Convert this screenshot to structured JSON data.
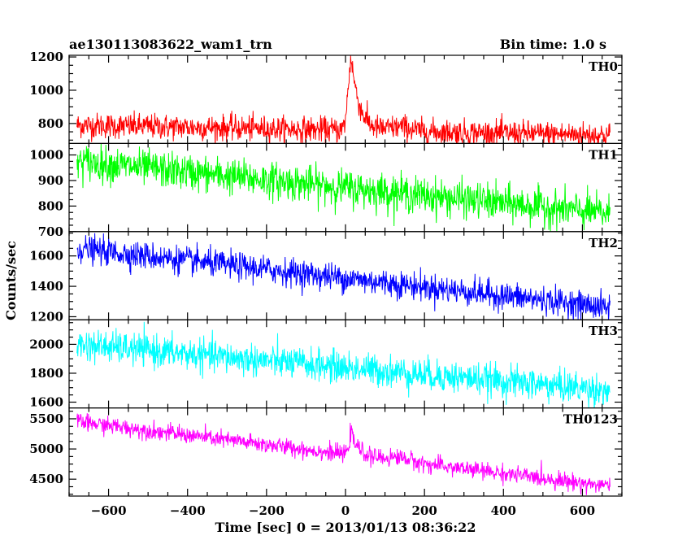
{
  "chart_data": {
    "type": "line",
    "title": "ae130113083622_wam1_trn",
    "bin_time_label": "Bin time: 1.0 s",
    "xlabel": "Time [sec] 0 = 2013/01/13 08:36:22",
    "ylabel": "Counts/sec",
    "xlim": [
      -700,
      700
    ],
    "x_ticks": [
      -600,
      -400,
      -200,
      0,
      200,
      400,
      600
    ],
    "x_tick_labels": [
      "−600",
      "−400",
      "−200",
      "0",
      "200",
      "400",
      "600"
    ],
    "x_range": [
      -680,
      670
    ],
    "series": [
      {
        "name": "TH0",
        "color": "#ff0000",
        "ylim": [
          680,
          1210
        ],
        "y_ticks": [
          800,
          1000,
          1200
        ],
        "y_tick_labels": [
          "800",
          "1000",
          "1200"
        ],
        "baseline_start": 790,
        "baseline_end": 730,
        "noise": 38,
        "peak": {
          "x": 15,
          "height": 430,
          "width": 8,
          "decay": 20
        },
        "bump": {
          "x": 140,
          "height": 25,
          "width": 25
        }
      },
      {
        "name": "TH1",
        "color": "#00ff00",
        "ylim": [
          700,
          1045
        ],
        "y_ticks": [
          700,
          800,
          900,
          1000
        ],
        "y_tick_labels": [
          "700",
          "800",
          "900",
          "1000"
        ],
        "baseline_start": 975,
        "baseline_end": 770,
        "noise": 35
      },
      {
        "name": "TH2",
        "color": "#0000ff",
        "ylim": [
          1180,
          1760
        ],
        "y_ticks": [
          1200,
          1400,
          1600
        ],
        "y_tick_labels": [
          "1200",
          "1400",
          "1600"
        ],
        "baseline_start": 1650,
        "baseline_end": 1260,
        "noise": 45
      },
      {
        "name": "TH3",
        "color": "#00ffff",
        "ylim": [
          1560,
          2170
        ],
        "y_ticks": [
          1600,
          1800,
          2000
        ],
        "y_tick_labels": [
          "1600",
          "1800",
          "2000"
        ],
        "baseline_start": 2000,
        "baseline_end": 1680,
        "noise": 55
      },
      {
        "name": "TH0123",
        "color": "#ff00ff",
        "ylim": [
          4220,
          5680
        ],
        "y_ticks": [
          4500,
          5000,
          5500
        ],
        "y_tick_labels": [
          "4500",
          "5000",
          "5500"
        ],
        "baseline_start": 5450,
        "baseline_end": 4380,
        "noise": 70,
        "peak": {
          "x": 15,
          "height": 350,
          "width": 6,
          "decay": 18
        },
        "bump": {
          "x": 140,
          "height": 60,
          "width": 25
        }
      }
    ]
  }
}
